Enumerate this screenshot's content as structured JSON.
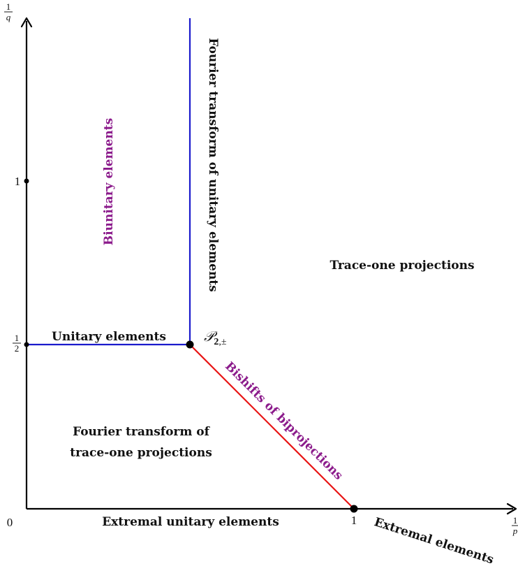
{
  "diagram": {
    "axes": {
      "y_axis_label": {
        "num": "1",
        "den": "q"
      },
      "x_axis_label": {
        "num": "1",
        "den": "p"
      },
      "origin_label": "0",
      "y_tick_1": "1",
      "y_tick_half": {
        "num": "1",
        "den": "2"
      },
      "x_tick_1": "1"
    },
    "point_label": {
      "script": "𝒫",
      "sub_bold": "2",
      "sub_rest": ",±"
    },
    "regions": {
      "biunitary": "Biunitary elements",
      "fourier_unitary": "Fourier transform of unitary elements",
      "trace_one": "Trace-one projections",
      "unitary": "Unitary elements",
      "bishifts": "Bishifts of biprojections",
      "fourier_trace_line1": "Fourier transform of",
      "fourier_trace_line2": "trace-one projections",
      "extremal_unitary": "Extremal unitary elements",
      "extremal": "Extremal elements"
    },
    "colors": {
      "axis": "#000000",
      "blue_line": "#1a1acc",
      "red_line": "#e81515",
      "purple_text": "#8b1a8b"
    }
  }
}
